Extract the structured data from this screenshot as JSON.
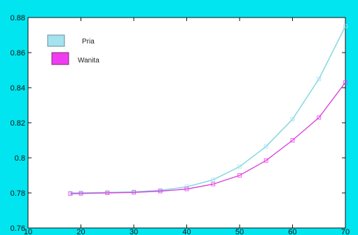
{
  "chart_data": {
    "type": "line",
    "title": "",
    "xlabel": "",
    "ylabel": "",
    "xlim": [
      10,
      70
    ],
    "ylim": [
      0.76,
      0.88
    ],
    "xticks": [
      10,
      20,
      30,
      40,
      50,
      60,
      70
    ],
    "yticks": [
      0.76,
      0.78,
      0.8,
      0.82,
      0.84,
      0.86,
      0.88
    ],
    "xtick_labels": [
      "10",
      "20",
      "30",
      "40",
      "50",
      "60",
      "70"
    ],
    "ytick_labels": [
      "0.76",
      "0.78",
      "0.8",
      "0.82",
      "0.84",
      "0.86",
      "0.88"
    ],
    "grid": false,
    "legend_position": "top-left",
    "background_color": "#00e5ef",
    "plot_background": "#ffffff",
    "series": [
      {
        "name": "Pria",
        "color": "#7fd7df",
        "marker_color": "#a3e3ef",
        "x": [
          18,
          20,
          25,
          30,
          35,
          40,
          45,
          50,
          55,
          60,
          65,
          70
        ],
        "y": [
          0.78,
          0.7801,
          0.7803,
          0.7806,
          0.7815,
          0.7835,
          0.7875,
          0.795,
          0.8065,
          0.822,
          0.845,
          0.875
        ]
      },
      {
        "name": "Wanita",
        "color": "#d946d9",
        "marker_color": "#f03cf0",
        "x": [
          18,
          20,
          25,
          30,
          35,
          40,
          45,
          50,
          55,
          60,
          65,
          70
        ],
        "y": [
          0.7795,
          0.7797,
          0.78,
          0.7803,
          0.781,
          0.7822,
          0.785,
          0.79,
          0.7985,
          0.81,
          0.823,
          0.843
        ]
      }
    ]
  }
}
